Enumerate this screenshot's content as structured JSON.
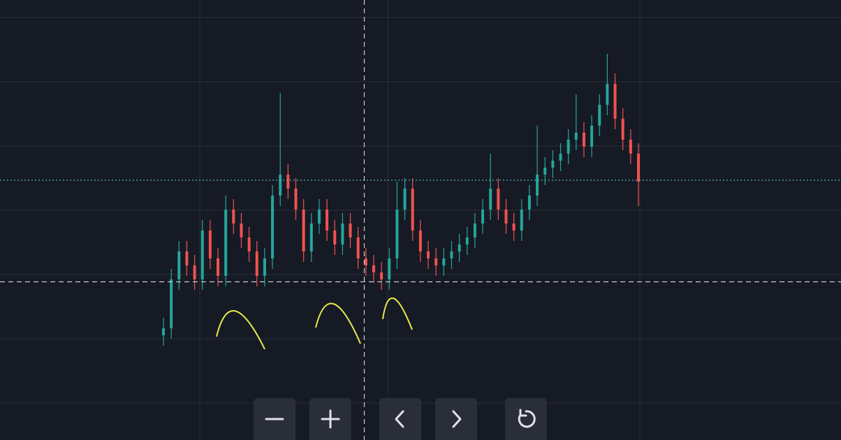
{
  "chart_data": {
    "type": "candlestick",
    "open": [
      150,
      160,
      230,
      270,
      250,
      230,
      300,
      260,
      235,
      330,
      310,
      290,
      270,
      235,
      260,
      350,
      380,
      360,
      330,
      270,
      310,
      330,
      300,
      280,
      310,
      290,
      260,
      250,
      240,
      230,
      260,
      330,
      360,
      300,
      270,
      260,
      250,
      260,
      270,
      280,
      290,
      310,
      330,
      360,
      330,
      310,
      300,
      330,
      350,
      380,
      390,
      400,
      410,
      430,
      440,
      420,
      450,
      480,
      510,
      460,
      430,
      410
    ],
    "high": [
      175,
      245,
      285,
      285,
      265,
      315,
      315,
      275,
      350,
      345,
      325,
      305,
      285,
      275,
      365,
      497,
      395,
      375,
      345,
      325,
      345,
      345,
      315,
      325,
      325,
      305,
      275,
      265,
      255,
      275,
      370,
      375,
      375,
      315,
      285,
      275,
      275,
      285,
      295,
      305,
      325,
      345,
      410,
      375,
      345,
      325,
      345,
      365,
      450,
      405,
      415,
      425,
      445,
      495,
      455,
      465,
      495,
      553,
      525,
      475,
      445,
      425
    ],
    "low": [
      135,
      145,
      215,
      235,
      215,
      215,
      245,
      220,
      220,
      295,
      275,
      255,
      220,
      220,
      245,
      335,
      345,
      315,
      255,
      255,
      295,
      285,
      265,
      265,
      275,
      245,
      235,
      225,
      215,
      215,
      245,
      315,
      285,
      255,
      245,
      235,
      235,
      245,
      255,
      265,
      275,
      295,
      315,
      315,
      295,
      285,
      285,
      315,
      335,
      365,
      375,
      385,
      395,
      415,
      405,
      405,
      435,
      465,
      445,
      415,
      395,
      335
    ],
    "close": [
      160,
      230,
      270,
      250,
      230,
      300,
      260,
      235,
      330,
      310,
      290,
      270,
      235,
      260,
      350,
      380,
      360,
      330,
      270,
      310,
      330,
      300,
      280,
      310,
      290,
      260,
      250,
      240,
      230,
      260,
      330,
      360,
      300,
      270,
      260,
      250,
      260,
      270,
      280,
      290,
      310,
      330,
      360,
      330,
      310,
      300,
      330,
      350,
      380,
      390,
      400,
      410,
      430,
      440,
      420,
      450,
      480,
      510,
      460,
      430,
      410,
      370
    ],
    "up_color": "#26a69a",
    "down_color": "#ef5350",
    "ylim": [
      0,
      630
    ]
  }
}
